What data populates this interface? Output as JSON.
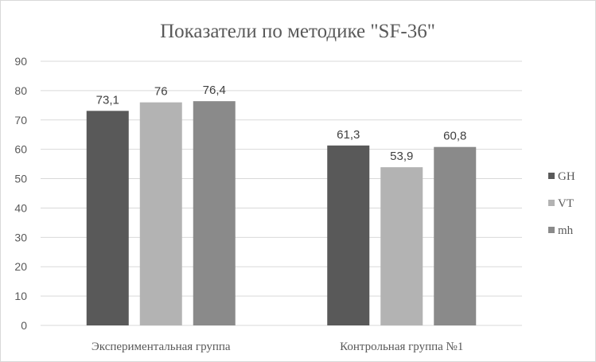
{
  "chart_data": {
    "type": "bar",
    "title": "Показатели  по методике \"SF-36\"",
    "categories": [
      "Экспериментальная группа",
      "Контрольная группа №1"
    ],
    "series": [
      {
        "name": "GH",
        "values": [
          73.1,
          61.3
        ],
        "labels": [
          "73,1",
          "61,3"
        ],
        "color": "#595959"
      },
      {
        "name": "VT",
        "values": [
          76,
          53.9
        ],
        "labels": [
          "76",
          "53,9"
        ],
        "color": "#b3b3b3"
      },
      {
        "name": "mh",
        "values": [
          76.4,
          60.8
        ],
        "labels": [
          "76,4",
          "60,8"
        ],
        "color": "#8a8a8a"
      }
    ],
    "ylim": [
      0,
      90
    ],
    "yticks": [
      "0",
      "10",
      "20",
      "30",
      "40",
      "50",
      "60",
      "70",
      "80",
      "90"
    ],
    "grid": true,
    "legend_position": "right",
    "xlabel": "",
    "ylabel": ""
  }
}
